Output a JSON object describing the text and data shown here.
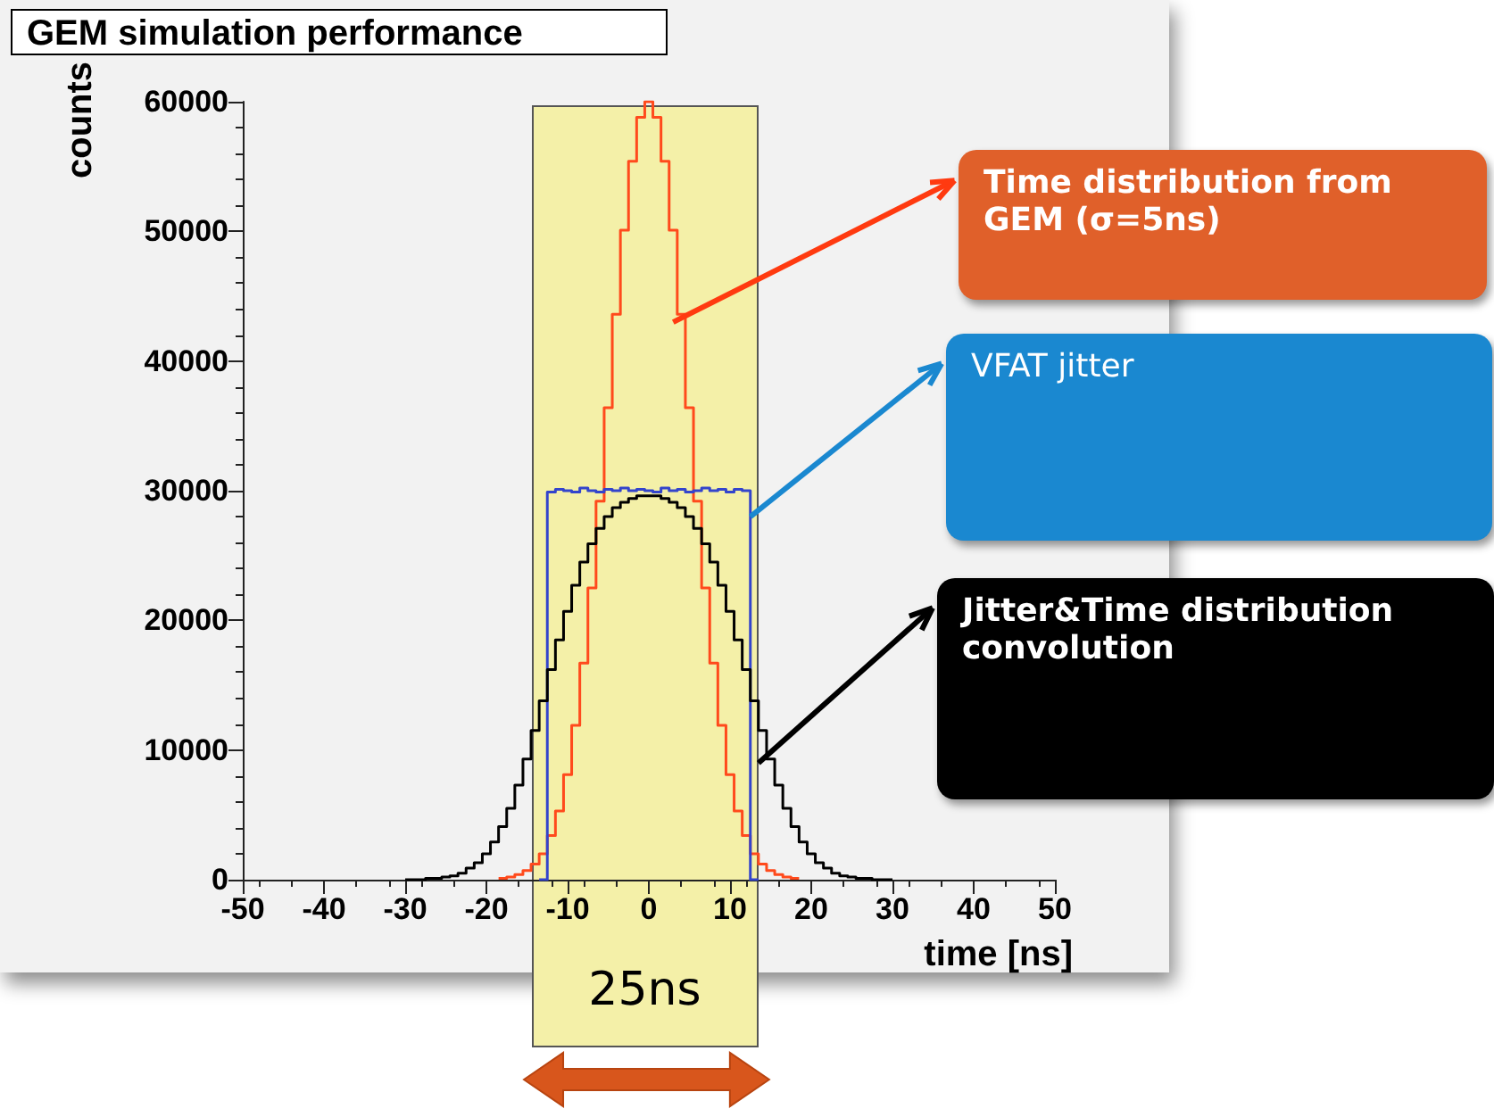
{
  "chart_data": {
    "type": "step",
    "title": "GEM simulation performance",
    "xlabel": "time [ns]",
    "ylabel": "counts",
    "x": [
      -30,
      -29,
      -28,
      -27,
      -26,
      -25,
      -24,
      -23,
      -22,
      -21,
      -20,
      -19,
      -18,
      -17,
      -16,
      -15,
      -14,
      -13,
      -12,
      -11,
      -10,
      -9,
      -8,
      -7,
      -6,
      -5,
      -4,
      -3,
      -2,
      -1,
      0,
      1,
      2,
      3,
      4,
      5,
      6,
      7,
      8,
      9,
      10,
      11,
      12,
      13,
      14,
      15,
      16,
      17,
      18,
      19,
      20,
      21,
      22,
      23,
      24,
      25,
      26,
      27,
      28,
      29,
      30
    ],
    "series": [
      {
        "color": "#ff4a1c",
        "values": [
          null,
          null,
          null,
          null,
          null,
          null,
          null,
          null,
          null,
          null,
          null,
          null,
          100,
          200,
          400,
          700,
          1200,
          2000,
          3400,
          5300,
          8100,
          11900,
          16700,
          22500,
          29200,
          36400,
          43600,
          50100,
          55400,
          58800,
          60000,
          58800,
          55400,
          50100,
          43600,
          36400,
          29200,
          22500,
          16700,
          11900,
          8100,
          5300,
          3400,
          2000,
          1200,
          700,
          400,
          200,
          100,
          null,
          null,
          null,
          null,
          null,
          null,
          null,
          null,
          null,
          null,
          null,
          null
        ]
      },
      {
        "color": "#3344cc",
        "values": [
          null,
          null,
          null,
          null,
          null,
          null,
          null,
          null,
          null,
          null,
          null,
          null,
          null,
          null,
          null,
          null,
          null,
          0,
          29900,
          30100,
          30000,
          29900,
          30200,
          30000,
          29900,
          30100,
          30000,
          30200,
          30000,
          30100,
          30000,
          29900,
          30200,
          30000,
          30100,
          29900,
          30000,
          30200,
          30000,
          30100,
          29900,
          30100,
          30000,
          0,
          null,
          null,
          null,
          null,
          null,
          null,
          null,
          null,
          null,
          null,
          null,
          null,
          null,
          null,
          null,
          null,
          null
        ]
      },
      {
        "color": "#000000",
        "values": [
          0,
          0,
          0,
          100,
          100,
          200,
          300,
          500,
          900,
          1300,
          2000,
          2900,
          4100,
          5500,
          7300,
          9300,
          11500,
          13800,
          16200,
          18500,
          20700,
          22700,
          24500,
          25900,
          27100,
          28000,
          28700,
          29100,
          29400,
          29600,
          29600,
          29600,
          29400,
          29100,
          28700,
          28000,
          27100,
          25900,
          24500,
          22700,
          20700,
          18500,
          16200,
          13800,
          11500,
          9300,
          7300,
          5500,
          4100,
          2900,
          2000,
          1300,
          900,
          500,
          300,
          200,
          100,
          100,
          0,
          0,
          0
        ]
      }
    ],
    "xlim": [
      -50,
      50
    ],
    "xticks": [
      -50,
      -40,
      -30,
      -20,
      -10,
      0,
      10,
      20,
      30,
      40,
      50
    ],
    "ylim": [
      0,
      60000
    ],
    "yticks": [
      0,
      10000,
      20000,
      30000,
      40000,
      50000,
      60000
    ],
    "bands": [
      {
        "axis": "x",
        "from": -14.5,
        "to": 13.5,
        "label": "25ns",
        "color": "#f4f0a8"
      }
    ],
    "annotations": [
      {
        "text": "Time distribution from GEM (σ=5ns)",
        "x": 3,
        "y": 43000
      },
      {
        "text": "VFAT jitter",
        "x": 12.5,
        "y": 28000
      },
      {
        "text": "Jitter&Time distribution convolution",
        "x": 13.5,
        "y": 9000
      }
    ],
    "grid": false
  }
}
